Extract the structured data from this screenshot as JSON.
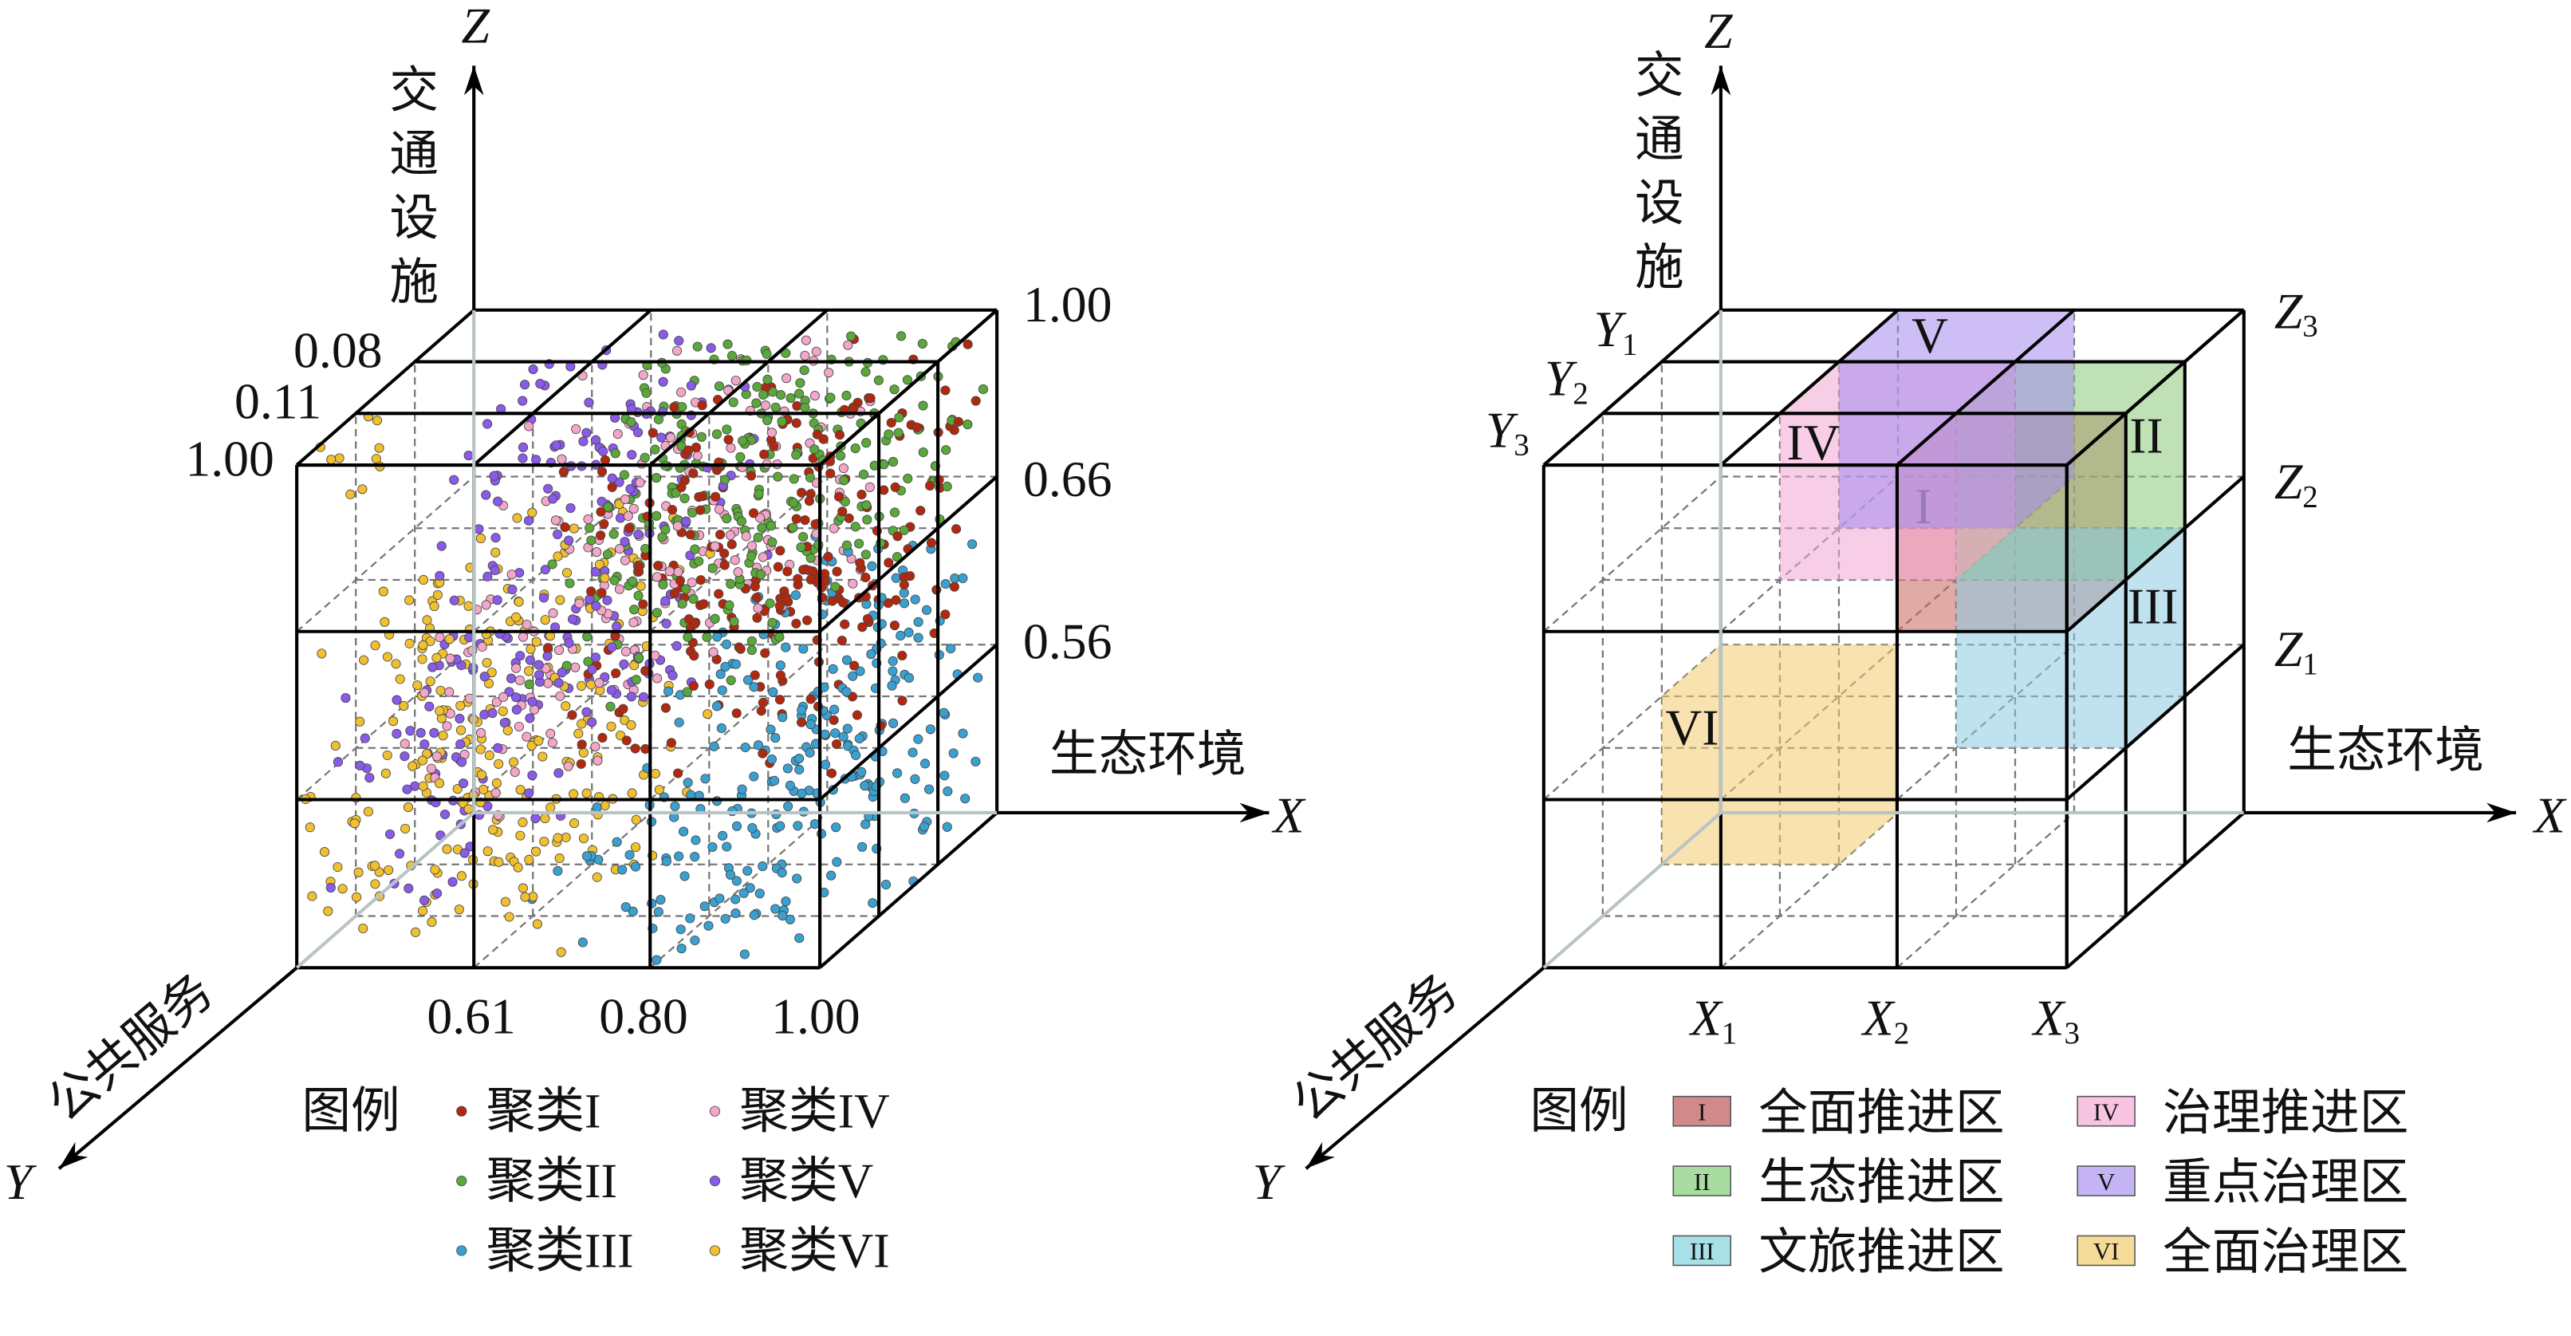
{
  "left": {
    "axis_z": "Z",
    "axis_x": "X",
    "axis_y": "Y",
    "z_title": [
      "交",
      "通",
      "设",
      "施"
    ],
    "x_title": "生态环境",
    "y_title": "公共服务",
    "x_ticks": [
      "0.61",
      "0.80",
      "1.00"
    ],
    "z_ticks": [
      "1.00",
      "0.66",
      "0.56"
    ],
    "y_ticks": [
      "0.08",
      "0.11",
      "1.00"
    ],
    "legend_title": "图例",
    "clusters": [
      {
        "label": "聚类I",
        "color": "#b2280e"
      },
      {
        "label": "聚类II",
        "color": "#5aa83a"
      },
      {
        "label": "聚类III",
        "color": "#3aa0d0"
      },
      {
        "label": "聚类IV",
        "color": "#f2a6c8"
      },
      {
        "label": "聚类V",
        "color": "#8a5ae8"
      },
      {
        "label": "聚类VI",
        "color": "#f0c030"
      }
    ]
  },
  "right": {
    "axis_z": "Z",
    "axis_x": "X",
    "axis_y": "Y",
    "z_title": [
      "交",
      "通",
      "设",
      "施"
    ],
    "x_title": "生态环境",
    "y_title": "公共服务",
    "x_ticks": [
      [
        "X",
        "1"
      ],
      [
        "X",
        "2"
      ],
      [
        "X",
        "3"
      ]
    ],
    "z_ticks": [
      [
        "Z",
        "3"
      ],
      [
        "Z",
        "2"
      ],
      [
        "Z",
        "1"
      ]
    ],
    "y_ticks": [
      [
        "Y",
        "1"
      ],
      [
        "Y",
        "2"
      ],
      [
        "Y",
        "3"
      ]
    ],
    "legend_title": "图例",
    "zones": [
      {
        "code": "I",
        "label": "全面推进区",
        "color": "#c8645e",
        "swatch": "#d08a8a"
      },
      {
        "code": "II",
        "label": "生态推进区",
        "color": "#8cc878",
        "swatch": "#a8dca0"
      },
      {
        "code": "III",
        "label": "文旅推进区",
        "color": "#8ccae0",
        "swatch": "#a8e0e8"
      },
      {
        "code": "IV",
        "label": "治理推进区",
        "color": "#f4a8d4",
        "swatch": "#f8c4e4"
      },
      {
        "code": "V",
        "label": "重点治理区",
        "color": "#a48cec",
        "swatch": "#c4b4f4"
      },
      {
        "code": "VI",
        "label": "全面治理区",
        "color": "#f2cc70",
        "swatch": "#f4dc98"
      }
    ]
  }
}
